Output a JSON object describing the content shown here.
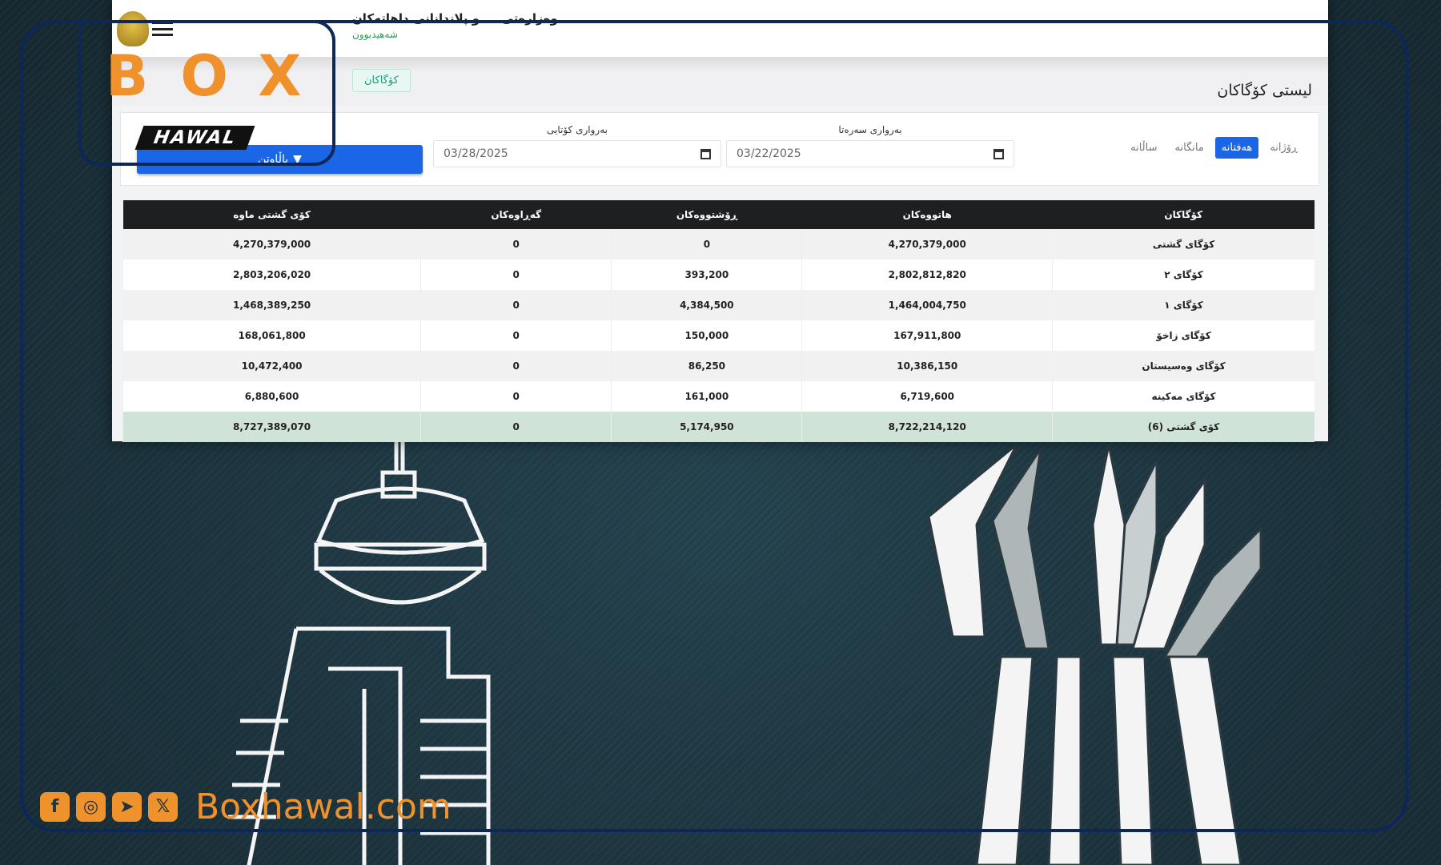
{
  "app": {
    "title": "وەزارەتی ... و پلاندانانی داهاتەکان",
    "subtitle": "شەهیدبوون",
    "page_title": "لیستی کۆگاکان",
    "action_button": "کۆگاکان"
  },
  "filters": {
    "periods": [
      {
        "label": "ڕۆژانە",
        "active": false
      },
      {
        "label": "هەفتانە",
        "active": true
      },
      {
        "label": "مانگانە",
        "active": false
      },
      {
        "label": "ساڵانە",
        "active": false
      }
    ],
    "start_label": "بەرواری سەرەتا",
    "start_value": "03/22/2025",
    "end_label": "بەرواری کۆتایی",
    "end_value": "03/28/2025",
    "filter_button": "پاڵاوتن"
  },
  "table": {
    "headers": [
      "کۆگاکان",
      "هاتووەکان",
      "ڕۆشتووەکان",
      "گەڕاوەکان",
      "کۆی گشتی ماوە"
    ],
    "rows": [
      [
        "کۆگای گشتی",
        "4,270,379,000",
        "0",
        "0",
        "4,270,379,000"
      ],
      [
        "کۆگای ٢",
        "2,802,812,820",
        "393,200",
        "0",
        "2,803,206,020"
      ],
      [
        "کۆگای ١",
        "1,464,004,750",
        "4,384,500",
        "0",
        "1,468,389,250"
      ],
      [
        "کۆگای زاخۆ",
        "167,911,800",
        "150,000",
        "0",
        "168,061,800"
      ],
      [
        "کۆگای وەسیستان",
        "10,386,150",
        "86,250",
        "0",
        "10,472,400"
      ],
      [
        "کۆگای مەکینە",
        "6,719,600",
        "161,000",
        "0",
        "6,880,600"
      ]
    ],
    "total": [
      "کۆی گشتی (6)",
      "8,722,214,120",
      "5,174,950",
      "0",
      "8,727,389,070"
    ]
  },
  "brand": {
    "logo_text": "BOX",
    "logo_sub": "HAWAL",
    "website": "Boxhawal.com",
    "accent": "#f0922c",
    "frame": "#0c2758"
  },
  "social": [
    {
      "icon": "facebook-icon",
      "glyph": "f"
    },
    {
      "icon": "instagram-icon",
      "glyph": "◎"
    },
    {
      "icon": "telegram-icon",
      "glyph": "➤"
    },
    {
      "icon": "x-icon",
      "glyph": "𝕏"
    }
  ]
}
